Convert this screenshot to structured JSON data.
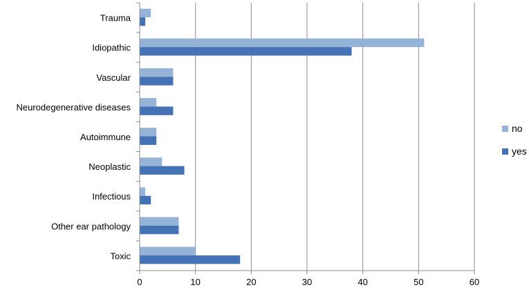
{
  "chart_data": {
    "type": "bar",
    "orientation": "horizontal",
    "categories": [
      "Trauma",
      "Idiopathic",
      "Vascular",
      "Neurodegenerative diseases",
      "Autoimmune",
      "Neoplastic",
      "Infectious",
      "Other ear pathology",
      "Toxic"
    ],
    "series": [
      {
        "name": "no",
        "color": "#95B3D7",
        "values": [
          2,
          51,
          6,
          3,
          3,
          4,
          1,
          7,
          10
        ]
      },
      {
        "name": "yes",
        "color": "#4472B5",
        "values": [
          1,
          38,
          6,
          6,
          3,
          8,
          2,
          7,
          18
        ]
      }
    ],
    "xlim": [
      0,
      60
    ],
    "xticks": [
      0,
      10,
      20,
      30,
      40,
      50,
      60
    ],
    "grid": true,
    "legend": "right"
  }
}
